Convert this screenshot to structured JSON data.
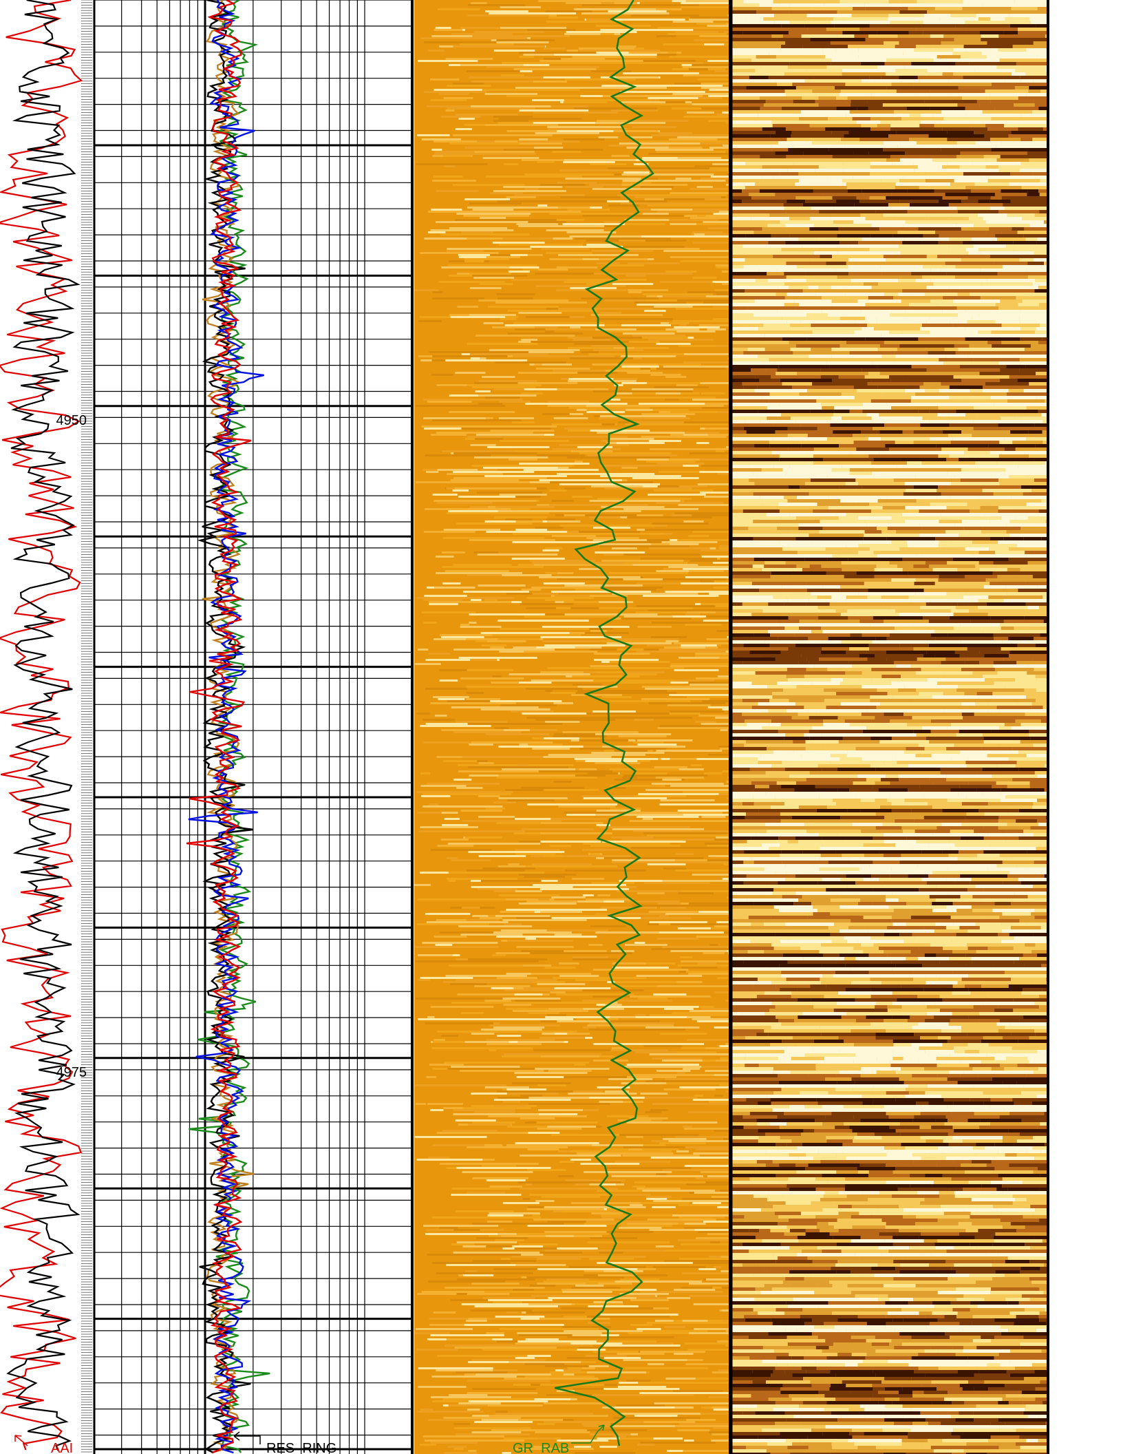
{
  "depth_labels": [
    "4950",
    "4975"
  ],
  "curve_labels": {
    "left": "AAI",
    "middle": "RES_RING",
    "right": "GR_RAB"
  }
}
